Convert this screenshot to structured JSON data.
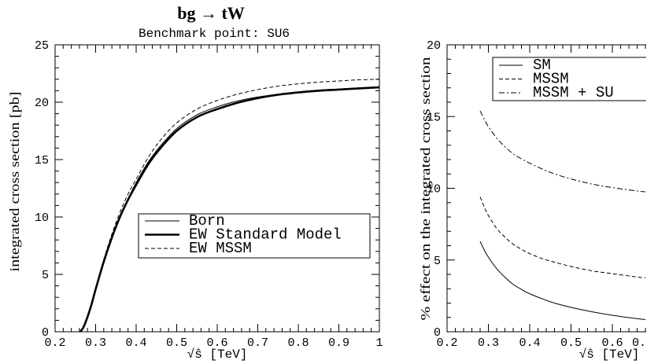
{
  "chart_data": [
    {
      "type": "line",
      "title": "bg → tW",
      "subtitle": "Benchmark point: SU6",
      "xlabel": "√ŝ [TeV]",
      "ylabel": "integrated cross section [pb]",
      "xlim": [
        0.2,
        1.0
      ],
      "ylim": [
        0,
        25
      ],
      "xticks": [
        0.2,
        0.3,
        0.4,
        0.5,
        0.6,
        0.7,
        0.8,
        0.9,
        1.0
      ],
      "xtick_labels": [
        "0.2",
        "0.3",
        "0.4",
        "0.5",
        "0.6",
        "0.7",
        "0.8",
        "0.9",
        "1"
      ],
      "yticks": [
        0,
        5,
        10,
        15,
        20,
        25
      ],
      "ytick_labels": [
        "0",
        "5",
        "10",
        "15",
        "20",
        "25"
      ],
      "grid": false,
      "legend": "center-right",
      "line_color": "#000000",
      "x": [
        0.262,
        0.27,
        0.28,
        0.29,
        0.3,
        0.32,
        0.34,
        0.36,
        0.38,
        0.4,
        0.43,
        0.46,
        0.5,
        0.55,
        0.6,
        0.65,
        0.7,
        0.75,
        0.8,
        0.85,
        0.9,
        0.95,
        1.0
      ],
      "series": [
        {
          "name": "Born",
          "style": "thin-solid",
          "values": [
            0,
            0.4,
            1.3,
            2.5,
            3.8,
            6.2,
            8.3,
            10.1,
            11.6,
            13.0,
            14.8,
            16.2,
            17.7,
            18.9,
            19.6,
            20.1,
            20.45,
            20.7,
            20.9,
            21.05,
            21.15,
            21.25,
            21.35
          ]
        },
        {
          "name": "EW Standard Model",
          "style": "thick-solid",
          "values": [
            0,
            0.4,
            1.3,
            2.4,
            3.7,
            6.1,
            8.2,
            10.0,
            11.5,
            12.8,
            14.6,
            16.0,
            17.5,
            18.7,
            19.4,
            19.95,
            20.35,
            20.65,
            20.85,
            21.0,
            21.1,
            21.2,
            21.3
          ]
        },
        {
          "name": "EW MSSM",
          "style": "dashed",
          "values": [
            0,
            0.4,
            1.3,
            2.5,
            3.8,
            6.3,
            8.5,
            10.4,
            12.0,
            13.3,
            15.2,
            16.7,
            18.2,
            19.4,
            20.15,
            20.7,
            21.1,
            21.4,
            21.6,
            21.75,
            21.85,
            21.95,
            22.0
          ]
        }
      ]
    },
    {
      "type": "line",
      "xlabel": "√ŝ [TeV]",
      "ylabel": "% effect on the integrated cross section",
      "xlim": [
        0.2,
        0.68
      ],
      "ylim": [
        0,
        20
      ],
      "xticks": [
        0.2,
        0.3,
        0.4,
        0.5,
        0.6,
        0.7
      ],
      "xtick_labels": [
        "0.2",
        "0.3",
        "0.4",
        "0.5",
        "0.6",
        "0."
      ],
      "yticks": [
        0,
        5,
        10,
        15,
        20
      ],
      "ytick_labels": [
        "0",
        "5",
        "10",
        "15",
        "20"
      ],
      "grid": false,
      "legend": "top-right",
      "line_color": "#000000",
      "x": [
        0.28,
        0.29,
        0.3,
        0.32,
        0.34,
        0.36,
        0.38,
        0.4,
        0.43,
        0.46,
        0.5,
        0.55,
        0.6,
        0.65,
        0.68
      ],
      "series": [
        {
          "name": "SM",
          "style": "thin-solid",
          "values": [
            6.3,
            5.7,
            5.2,
            4.4,
            3.8,
            3.3,
            2.95,
            2.65,
            2.3,
            2.0,
            1.7,
            1.4,
            1.15,
            0.95,
            0.85
          ]
        },
        {
          "name": "MSSM",
          "style": "dashed",
          "values": [
            9.4,
            8.7,
            8.1,
            7.2,
            6.6,
            6.1,
            5.75,
            5.45,
            5.1,
            4.85,
            4.55,
            4.25,
            4.05,
            3.85,
            3.75
          ]
        },
        {
          "name": "MSSM + SU",
          "style": "dash-dot",
          "values": [
            15.4,
            14.8,
            14.3,
            13.5,
            12.9,
            12.4,
            12.05,
            11.75,
            11.35,
            11.0,
            10.65,
            10.3,
            10.05,
            9.85,
            9.75
          ]
        }
      ]
    }
  ]
}
